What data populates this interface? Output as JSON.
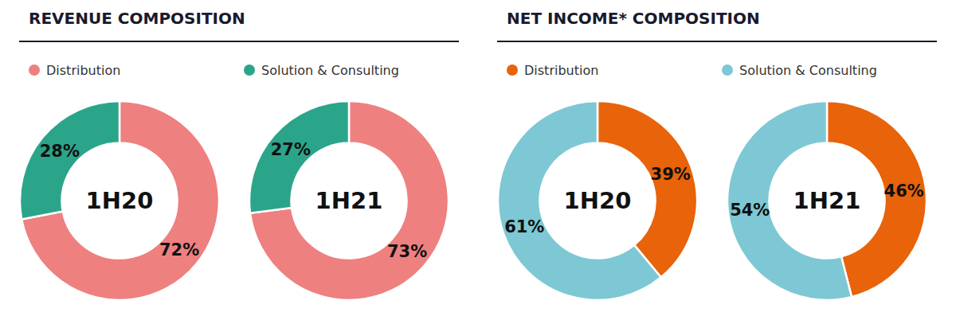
{
  "chart_data": [
    {
      "type": "donut",
      "title": "REVENUE COMPOSITION",
      "categories": [
        "Distribution",
        "Solution & Consulting"
      ],
      "colors": [
        "#EE8080",
        "#2BA58A"
      ],
      "series": [
        {
          "name": "1H20",
          "values": [
            72,
            28
          ],
          "value_labels": [
            "72%",
            "28%"
          ]
        },
        {
          "name": "1H21",
          "values": [
            73,
            27
          ],
          "value_labels": [
            "73%",
            "27%"
          ]
        }
      ],
      "data_labels": true,
      "legend": "top"
    },
    {
      "type": "donut",
      "title": "NET INCOME* COMPOSITION",
      "categories": [
        "Distribution",
        "Solution & Consulting"
      ],
      "colors": [
        "#E8630A",
        "#7DC8D4"
      ],
      "series": [
        {
          "name": "1H20",
          "values": [
            39,
            61
          ],
          "value_labels": [
            "39%",
            "61%"
          ]
        },
        {
          "name": "1H21",
          "values": [
            46,
            54
          ],
          "value_labels": [
            "46%",
            "54%"
          ]
        }
      ],
      "data_labels": true,
      "legend": "top"
    }
  ]
}
